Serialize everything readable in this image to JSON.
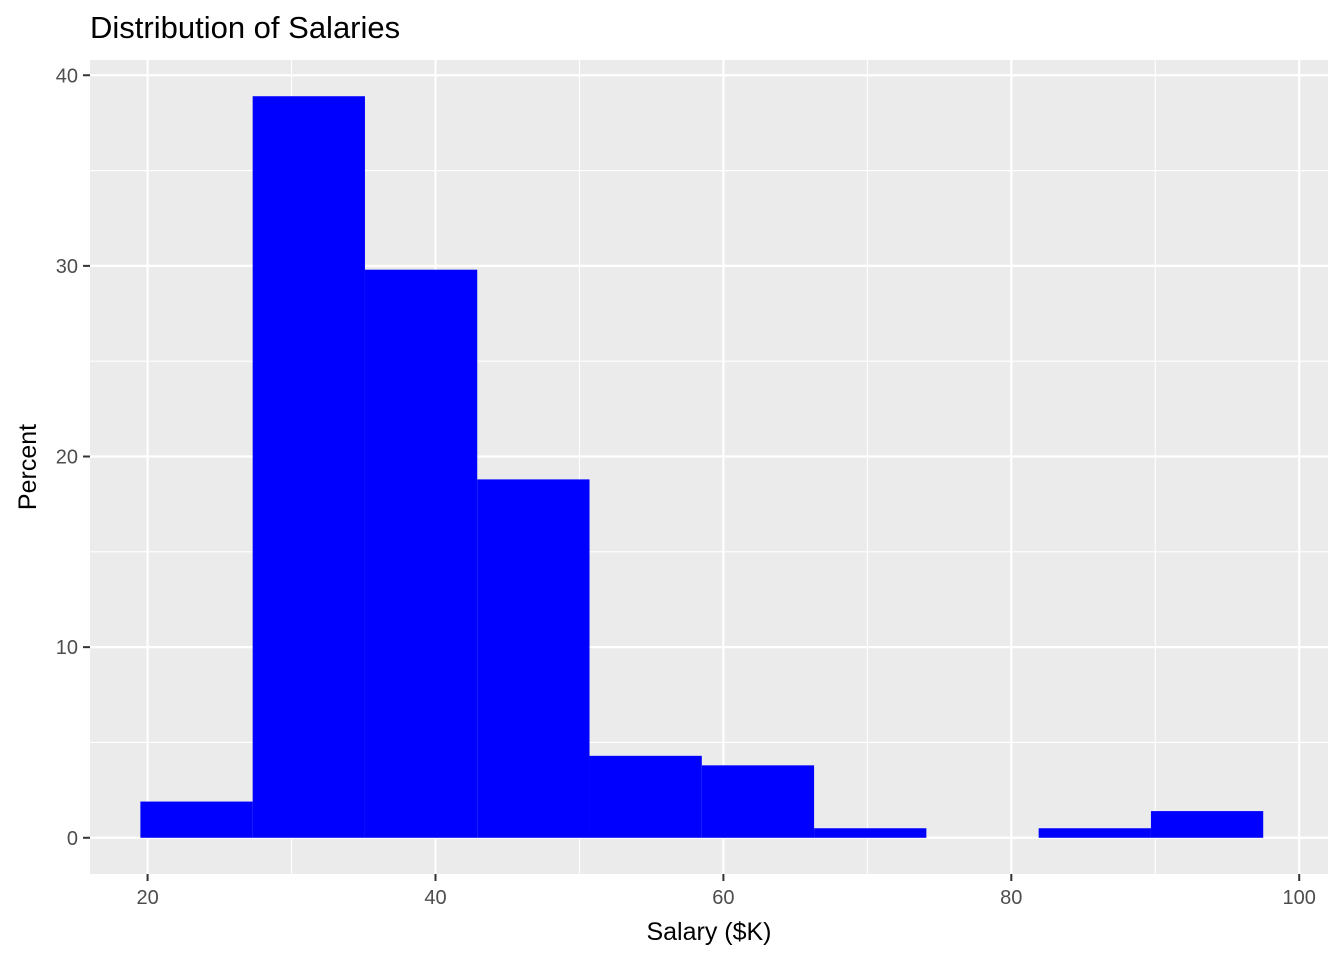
{
  "chart_data": {
    "type": "bar",
    "title": "Distribution of Salaries",
    "xlabel": "Salary ($K)",
    "ylabel": "Percent",
    "xlim": [
      16,
      102
    ],
    "ylim": [
      -1.9,
      40.8
    ],
    "xticks": [
      20,
      40,
      60,
      80,
      100
    ],
    "yticks": [
      0,
      10,
      20,
      30,
      40
    ],
    "grid": true,
    "bar_color": "#0000ff",
    "panel_color": "#ebebeb",
    "grid_color": "#ffffff",
    "bins": [
      {
        "x0": 19.5,
        "x1": 27.3,
        "value": 1.9
      },
      {
        "x0": 27.3,
        "x1": 35.1,
        "value": 38.9
      },
      {
        "x0": 35.1,
        "x1": 42.9,
        "value": 29.8
      },
      {
        "x0": 42.9,
        "x1": 50.7,
        "value": 18.8
      },
      {
        "x0": 50.7,
        "x1": 58.5,
        "value": 4.3
      },
      {
        "x0": 58.5,
        "x1": 66.3,
        "value": 3.8
      },
      {
        "x0": 66.3,
        "x1": 74.1,
        "value": 0.5
      },
      {
        "x0": 74.1,
        "x1": 81.9,
        "value": 0
      },
      {
        "x0": 81.9,
        "x1": 89.7,
        "value": 0.5
      },
      {
        "x0": 89.7,
        "x1": 97.5,
        "value": 1.4
      }
    ]
  }
}
